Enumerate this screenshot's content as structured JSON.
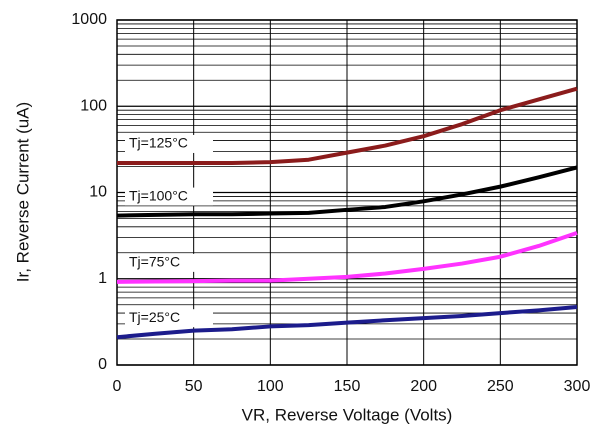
{
  "chart_data": {
    "type": "line",
    "x_label": "VR, Reverse Voltage (Volts)",
    "y_label": "Ir, Reverse Current (uA)",
    "x": [
      0,
      25,
      50,
      75,
      100,
      125,
      150,
      175,
      200,
      225,
      250,
      275,
      300
    ],
    "series": [
      {
        "name": "Tj=125°C",
        "color": "#8b1c1c",
        "values": [
          22,
          22,
          22,
          22,
          22.5,
          24,
          29,
          35,
          45,
          62,
          90,
          120,
          160
        ]
      },
      {
        "name": "Tj=100°C",
        "color": "#000000",
        "values": [
          5.4,
          5.5,
          5.6,
          5.6,
          5.7,
          5.8,
          6.3,
          6.8,
          7.9,
          9.5,
          11.7,
          15,
          19.5
        ]
      },
      {
        "name": "Tj=75°C",
        "color": "#ff33ff",
        "values": [
          0.92,
          0.93,
          0.94,
          0.95,
          0.95,
          1.0,
          1.05,
          1.15,
          1.3,
          1.5,
          1.8,
          2.4,
          3.4
        ]
      },
      {
        "name": "Tj=25°C",
        "color": "#1c1c8c",
        "values": [
          0.21,
          0.23,
          0.25,
          0.26,
          0.28,
          0.29,
          0.31,
          0.33,
          0.35,
          0.37,
          0.4,
          0.43,
          0.47
        ]
      }
    ],
    "xlim": [
      0,
      300
    ],
    "xticks": [
      0,
      50,
      100,
      150,
      200,
      250,
      300
    ],
    "ylim": [
      0.1,
      1000
    ],
    "yticks": [
      {
        "value": 0.1,
        "label": "0"
      },
      1,
      10,
      100,
      1000
    ],
    "y_log": true,
    "grid": true
  }
}
